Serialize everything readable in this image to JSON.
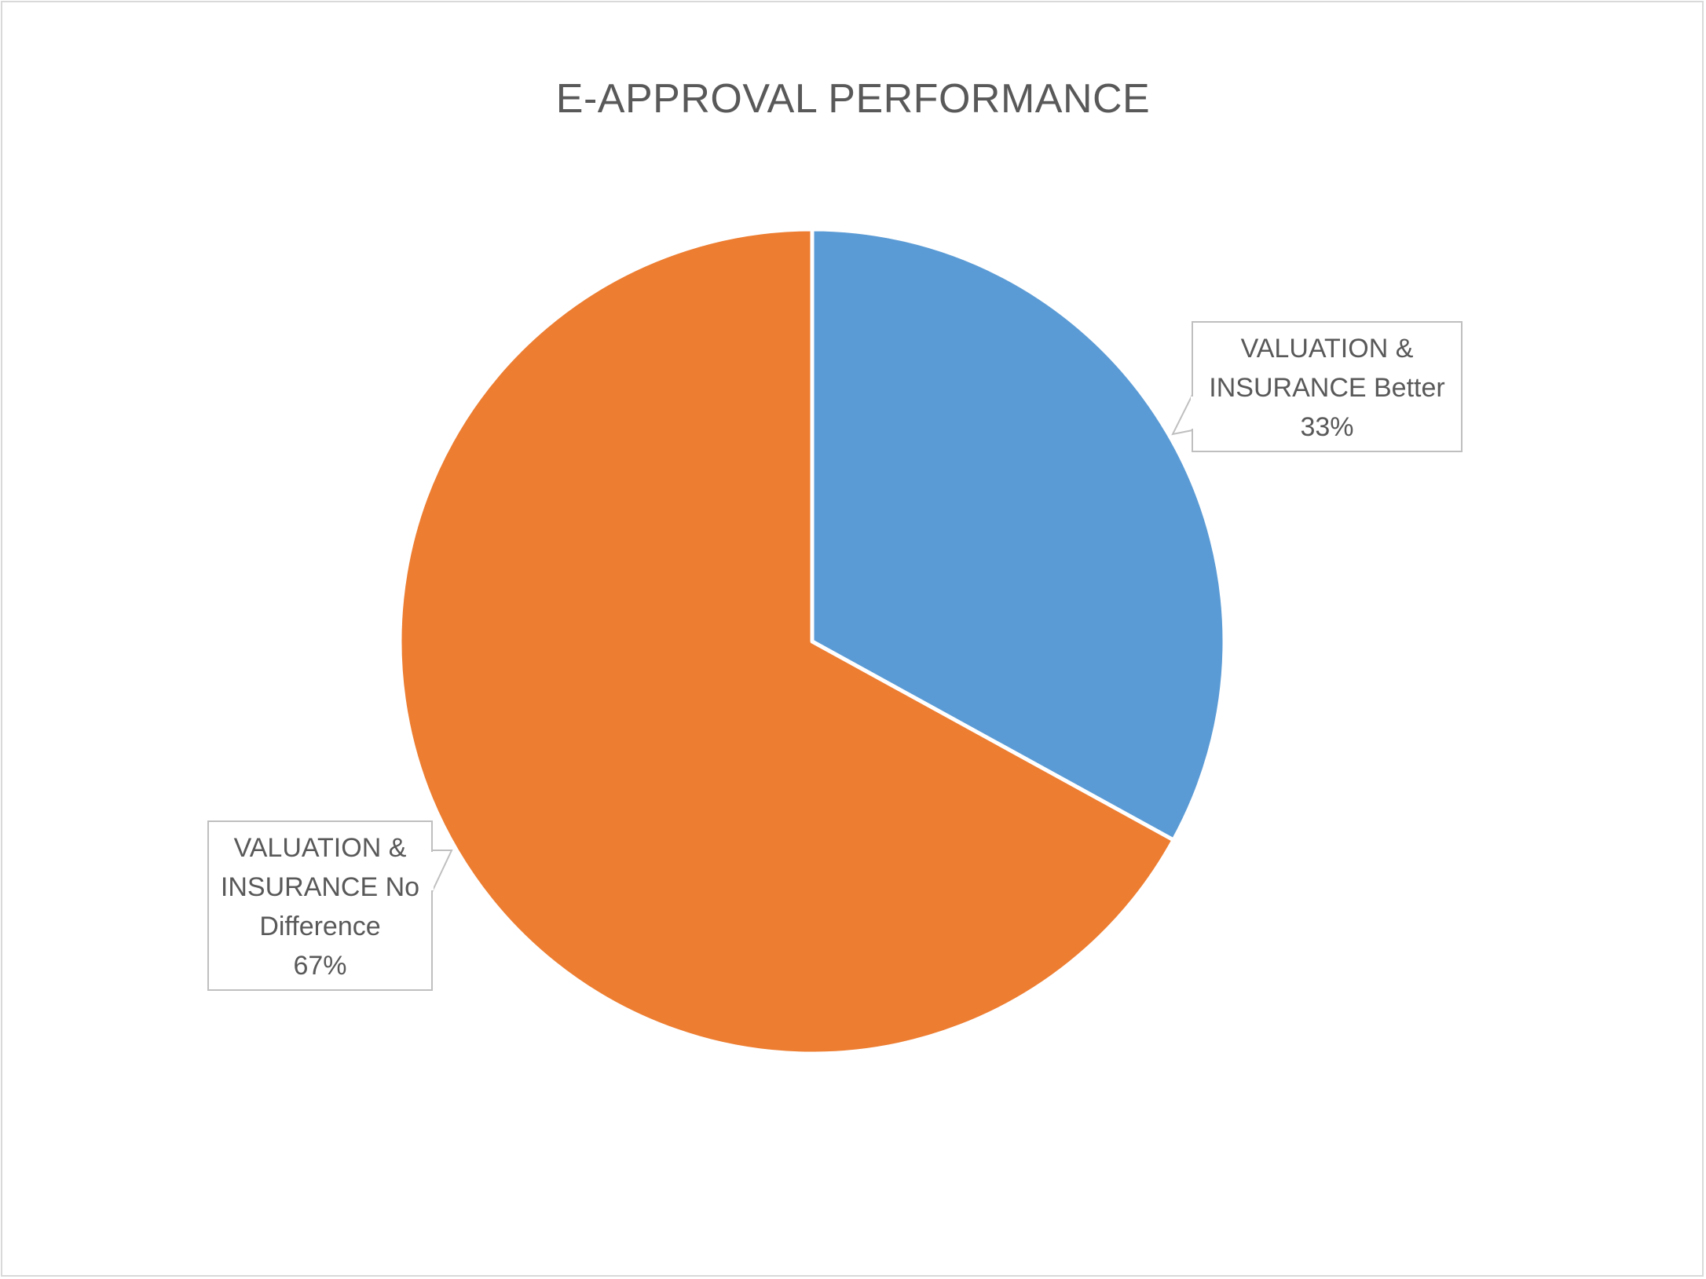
{
  "chart_data": {
    "type": "pie",
    "title": "E-APPROVAL PERFORMANCE",
    "start_angle_deg": 0,
    "slices": [
      {
        "label_lines": [
          "VALUATION &",
          "INSURANCE Better"
        ],
        "percent_label": "33%",
        "value": 33,
        "color": "#5b9bd5",
        "callout_side": "right"
      },
      {
        "label_lines": [
          "VALUATION &",
          "INSURANCE No",
          "Difference"
        ],
        "percent_label": "67%",
        "value": 67,
        "color": "#ed7d31",
        "callout_side": "left"
      }
    ],
    "legend": "none"
  }
}
